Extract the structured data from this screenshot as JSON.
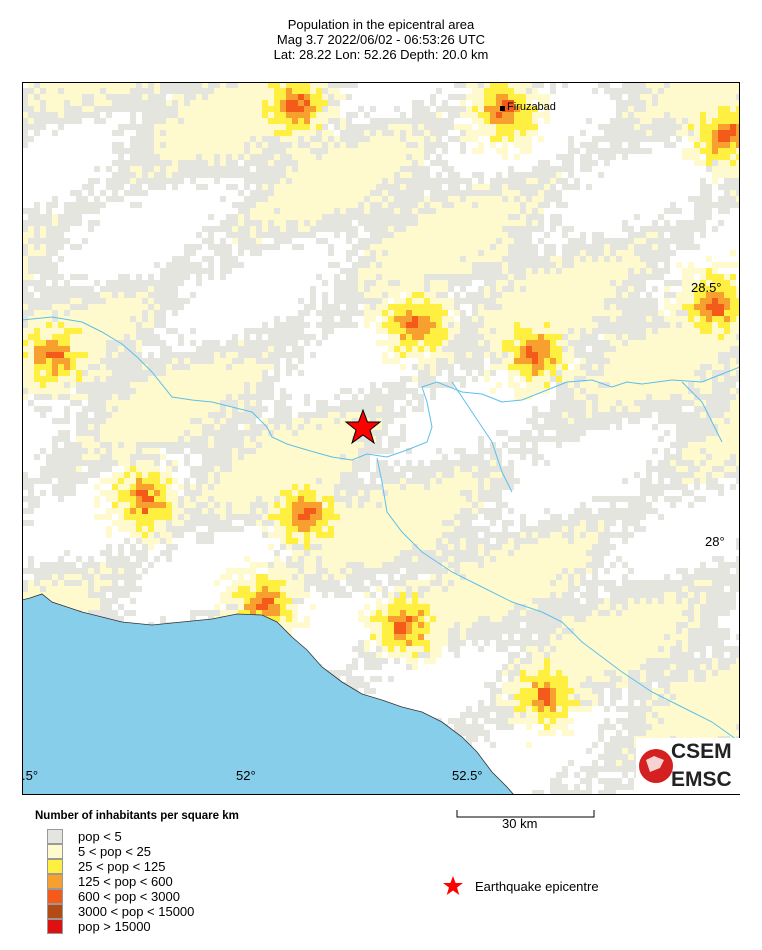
{
  "header": {
    "title": "Population in the epicentral area",
    "event_line": "Mag 3.7  2022/06/02 - 06:53:26 UTC",
    "location_line": "Lat: 28.22    Lon:  52.26     Depth:  20.0 km"
  },
  "map": {
    "lat_labels": [
      "28.5°",
      "28°"
    ],
    "lon_labels": [
      ".5°",
      "52°",
      "52.5°"
    ],
    "city": "Firuzabad",
    "epicentre": {
      "lat": 28.22,
      "lon": 52.26
    },
    "colors": {
      "sea": "#87ceeb",
      "river": "#5bc0ea",
      "epicentre": "#ff0000"
    }
  },
  "scale_bar": {
    "label": "30 km"
  },
  "legend": {
    "title": "Number of inhabitants per square km",
    "items": [
      {
        "label": "pop < 5",
        "color": "#e5e5e0"
      },
      {
        "label": "5 < pop < 25",
        "color": "#fffacd"
      },
      {
        "label": "25 < pop < 125",
        "color": "#ffef40"
      },
      {
        "label": "125 < pop < 600",
        "color": "#f7a030"
      },
      {
        "label": "600 < pop < 3000",
        "color": "#f45a1a"
      },
      {
        "label": "3000 < pop < 15000",
        "color": "#b44a16"
      },
      {
        "label": "pop > 15000",
        "color": "#dd1111"
      }
    ],
    "epicentre_label": "Earthquake epicentre"
  },
  "logo": {
    "top": "CSEM",
    "bottom": "EMSC"
  }
}
